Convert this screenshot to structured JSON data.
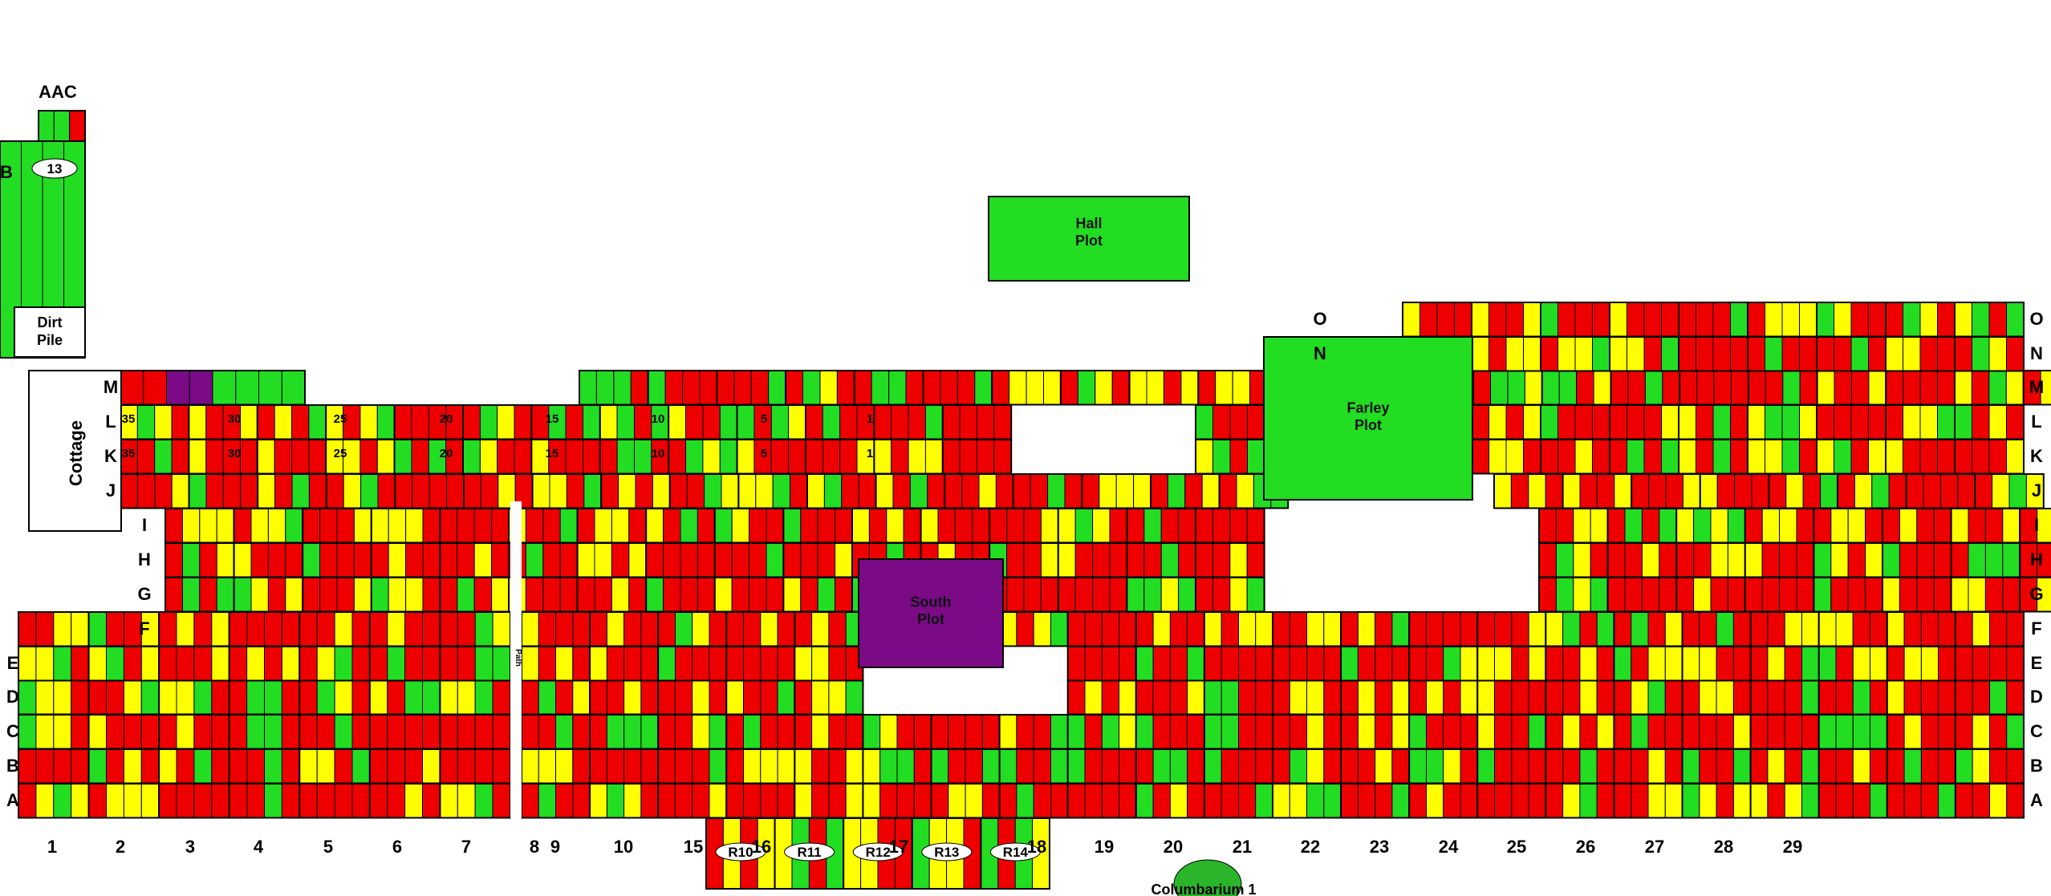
{
  "colors": {
    "red": "#ee0000",
    "yellow": "#ffff00",
    "green": "#22dd22",
    "purple": "#7a0a86",
    "grey": "#bbbbbb",
    "outline": "#000000"
  },
  "legend_meaning": {},
  "section_labels": {
    "aac": "AAC",
    "b": "B",
    "b_number": "13",
    "dirt_pile": "Dirt Pile",
    "cottage": "Cottage",
    "o": "O",
    "n": "N",
    "columbarium": "Columbarium 1",
    "path": "Path"
  },
  "plots": {
    "hall": "Hall Plot",
    "farley": "Farley Plot",
    "south": "South Plot"
  },
  "row_labels": [
    "A",
    "B",
    "C",
    "D",
    "E",
    "F",
    "G",
    "H",
    "I",
    "J",
    "K",
    "L",
    "M",
    "N",
    "O"
  ],
  "column_labels": [
    "1",
    "2",
    "3",
    "4",
    "5",
    "6",
    "7",
    "8",
    "9",
    "10",
    "15",
    "16",
    "17",
    "18",
    "19",
    "20",
    "21",
    "22",
    "23",
    "24",
    "25",
    "26",
    "27",
    "28",
    "29"
  ],
  "r_sections": [
    "R10",
    "R11",
    "R12",
    "R13",
    "R14"
  ],
  "kl_numbers": [
    "35",
    "30",
    "25",
    "20",
    "15",
    "10",
    "5",
    "1"
  ]
}
